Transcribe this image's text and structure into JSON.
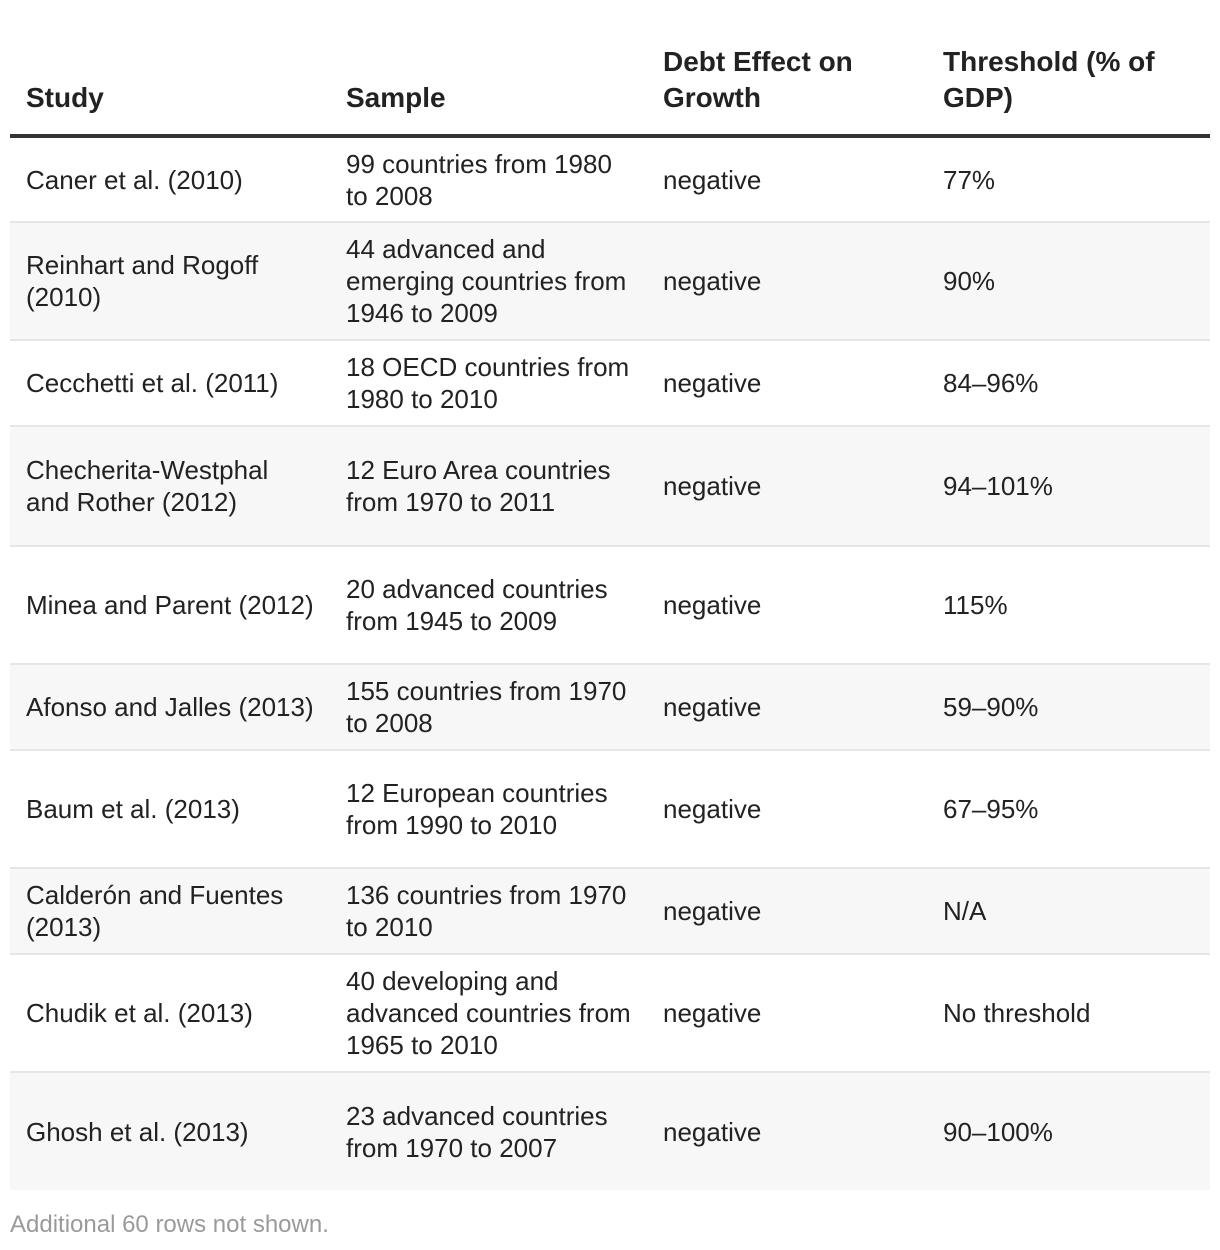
{
  "table": {
    "headers": [
      "Study",
      "Sample",
      "Debt Effect on Growth",
      "Threshold (% of GDP)"
    ],
    "rows": [
      {
        "study": "Caner et al. (2010)",
        "sample": "99 countries from 1980 to 2008",
        "effect": "negative",
        "threshold": "77%"
      },
      {
        "study": "Reinhart and Rogoff (2010)",
        "sample": "44 advanced and emerging countries from 1946 to 2009",
        "effect": "negative",
        "threshold": "90%"
      },
      {
        "study": "Cecchetti et al. (2011)",
        "sample": "18 OECD countries from 1980 to 2010",
        "effect": "negative",
        "threshold": "84–96%"
      },
      {
        "study": "Checherita-Westphal and Rother (2012)",
        "sample": "12 Euro Area countries from 1970 to 2011",
        "effect": "negative",
        "threshold": "94–101%"
      },
      {
        "study": "Minea and Parent (2012)",
        "sample": "20 advanced countries from 1945 to 2009",
        "effect": "negative",
        "threshold": "115%"
      },
      {
        "study": "Afonso and Jalles (2013)",
        "sample": "155 countries from 1970 to 2008",
        "effect": "negative",
        "threshold": "59–90%"
      },
      {
        "study": "Baum et al. (2013)",
        "sample": "12 European countries from 1990 to 2010",
        "effect": "negative",
        "threshold": "67–95%"
      },
      {
        "study": "Calderón and Fuentes (2013)",
        "sample": "136 countries from 1970 to 2010",
        "effect": "negative",
        "threshold": "N/A"
      },
      {
        "study": "Chudik et al. (2013)",
        "sample": "40 developing and advanced countries from 1965 to 2010",
        "effect": "negative",
        "threshold": "No threshold"
      },
      {
        "study": "Ghosh et al. (2013)",
        "sample": "23 advanced countries from 1970 to 2007",
        "effect": "negative",
        "threshold": "90–100%"
      }
    ]
  },
  "footnote": "Additional 60 rows not shown."
}
